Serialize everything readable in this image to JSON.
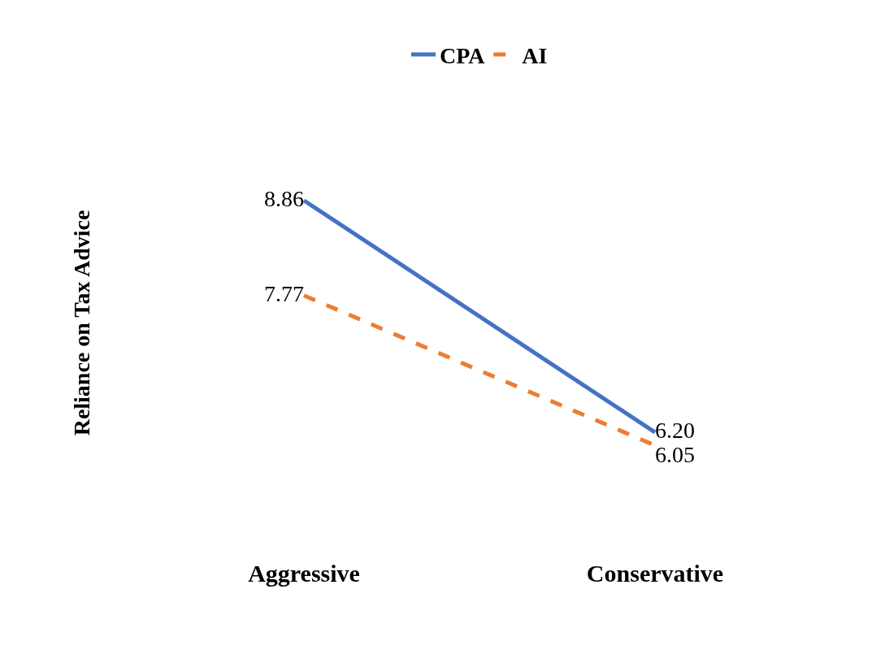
{
  "chart_data": {
    "type": "line",
    "ylabel": "Reliance on Tax Advice",
    "categories": [
      "Aggressive",
      "Conservative"
    ],
    "series": [
      {
        "name": "CPA",
        "color": "#4472c4",
        "line_style": "solid",
        "values": [
          8.86,
          6.2
        ],
        "value_labels": [
          "8.86",
          "6.20"
        ]
      },
      {
        "name": "AI",
        "color": "#ed7d31",
        "line_style": "dashed",
        "values": [
          7.77,
          6.05
        ],
        "value_labels": [
          "7.77",
          "6.05"
        ]
      }
    ],
    "legend": "top",
    "marker": "none",
    "tick_labels": "x"
  }
}
